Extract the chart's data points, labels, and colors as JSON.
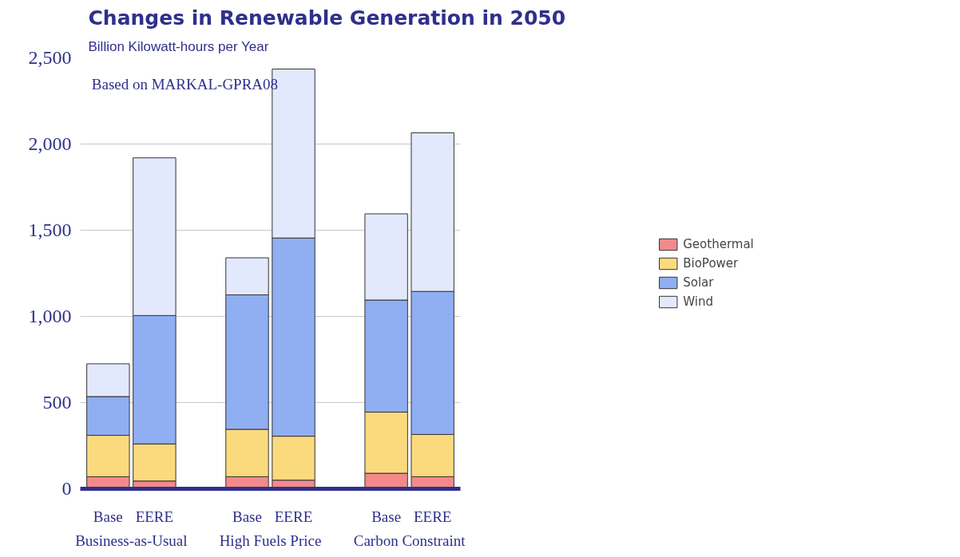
{
  "chart_data": {
    "type": "bar",
    "title": "Changes in Renewable Generation in 2050",
    "subtitle": "Billion Kilowatt-hours per Year",
    "annotations": [
      "Based on MARKAL-GPRA08",
      "Business-as-Usual",
      "High Fuels Price",
      "Carbon Constraint"
    ],
    "categories": [
      "Base",
      "EERE",
      "Base",
      "EERE",
      "Base",
      "EERE"
    ],
    "stacked": true,
    "series": [
      {
        "name": "Geothermal",
        "color": "#f28a8a",
        "values": [
          70,
          45,
          70,
          50,
          90,
          70
        ]
      },
      {
        "name": "BioPower",
        "color": "#fbda7e",
        "values": [
          240,
          215,
          275,
          255,
          355,
          245
        ]
      },
      {
        "name": "Solar",
        "color": "#90aef2",
        "values": [
          225,
          745,
          780,
          1150,
          650,
          830
        ]
      },
      {
        "name": "Wind",
        "color": "#e3e9fc",
        "values": [
          190,
          915,
          215,
          980,
          500,
          920
        ]
      }
    ],
    "ylim": [
      0,
      2500
    ],
    "yticks": [
      0,
      500,
      {
        "value": 1000,
        "label": "1,000"
      },
      {
        "value": 1500,
        "label": "1,500"
      },
      {
        "value": 2000,
        "label": "2,000"
      },
      {
        "value": 2500,
        "label": "2,500"
      }
    ],
    "grid": "y",
    "legend": "right"
  }
}
